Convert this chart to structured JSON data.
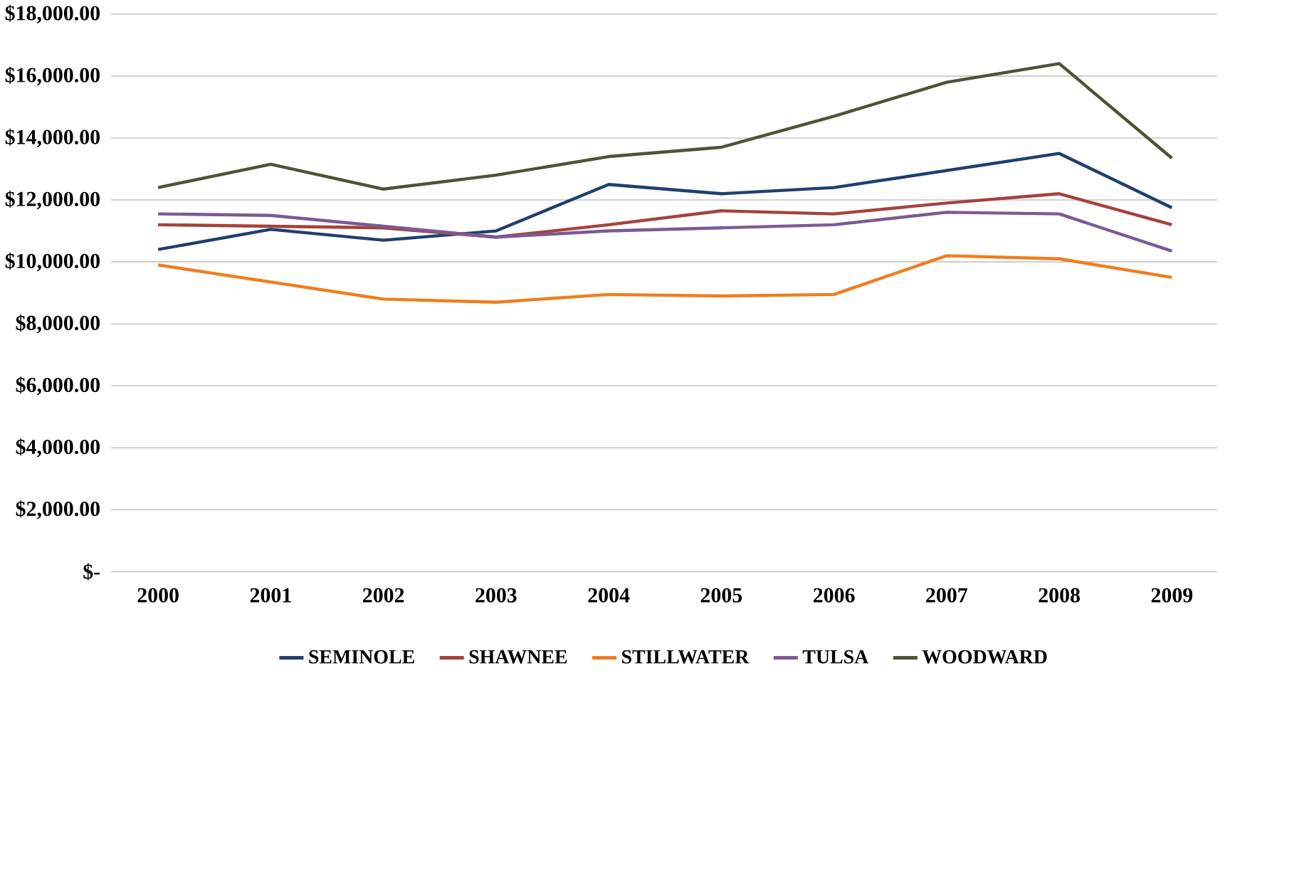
{
  "chart_data": {
    "type": "line",
    "categories": [
      "2000",
      "2001",
      "2002",
      "2003",
      "2004",
      "2005",
      "2006",
      "2007",
      "2008",
      "2009"
    ],
    "series": [
      {
        "name": "SEMINOLE",
        "color": "#1f3f6e",
        "values": [
          10400,
          11050,
          10700,
          11000,
          12500,
          12200,
          12400,
          12950,
          13500,
          11750
        ]
      },
      {
        "name": "SHAWNEE",
        "color": "#a6413c",
        "values": [
          11200,
          11150,
          11100,
          10800,
          11200,
          11650,
          11550,
          11900,
          12200,
          11200
        ]
      },
      {
        "name": "STILLWATER",
        "color": "#f07d1e",
        "values": [
          9900,
          9350,
          8800,
          8700,
          8950,
          8900,
          8950,
          10200,
          10100,
          9500
        ]
      },
      {
        "name": "TULSA",
        "color": "#7b5a94",
        "values": [
          11550,
          11500,
          11150,
          10800,
          11000,
          11100,
          11200,
          11600,
          11550,
          10350
        ]
      },
      {
        "name": "WOODWARD",
        "color": "#4f5236",
        "values": [
          12400,
          13150,
          12350,
          12800,
          13400,
          13700,
          14700,
          15800,
          16400,
          13350
        ]
      }
    ],
    "ylim": [
      0,
      18000
    ],
    "yticks": [
      {
        "value": 0,
        "label": "$-"
      },
      {
        "value": 2000,
        "label": "$2,000.00"
      },
      {
        "value": 4000,
        "label": "$4,000.00"
      },
      {
        "value": 6000,
        "label": "$6,000.00"
      },
      {
        "value": 8000,
        "label": "$8,000.00"
      },
      {
        "value": 10000,
        "label": "$10,000.00"
      },
      {
        "value": 12000,
        "label": "$12,000.00"
      },
      {
        "value": 14000,
        "label": "$14,000.00"
      },
      {
        "value": 16000,
        "label": "$16,000.00"
      },
      {
        "value": 18000,
        "label": "$18,000.00"
      }
    ],
    "grid": "y",
    "legend": "bottom",
    "marker": "none",
    "line_style": "solid"
  }
}
